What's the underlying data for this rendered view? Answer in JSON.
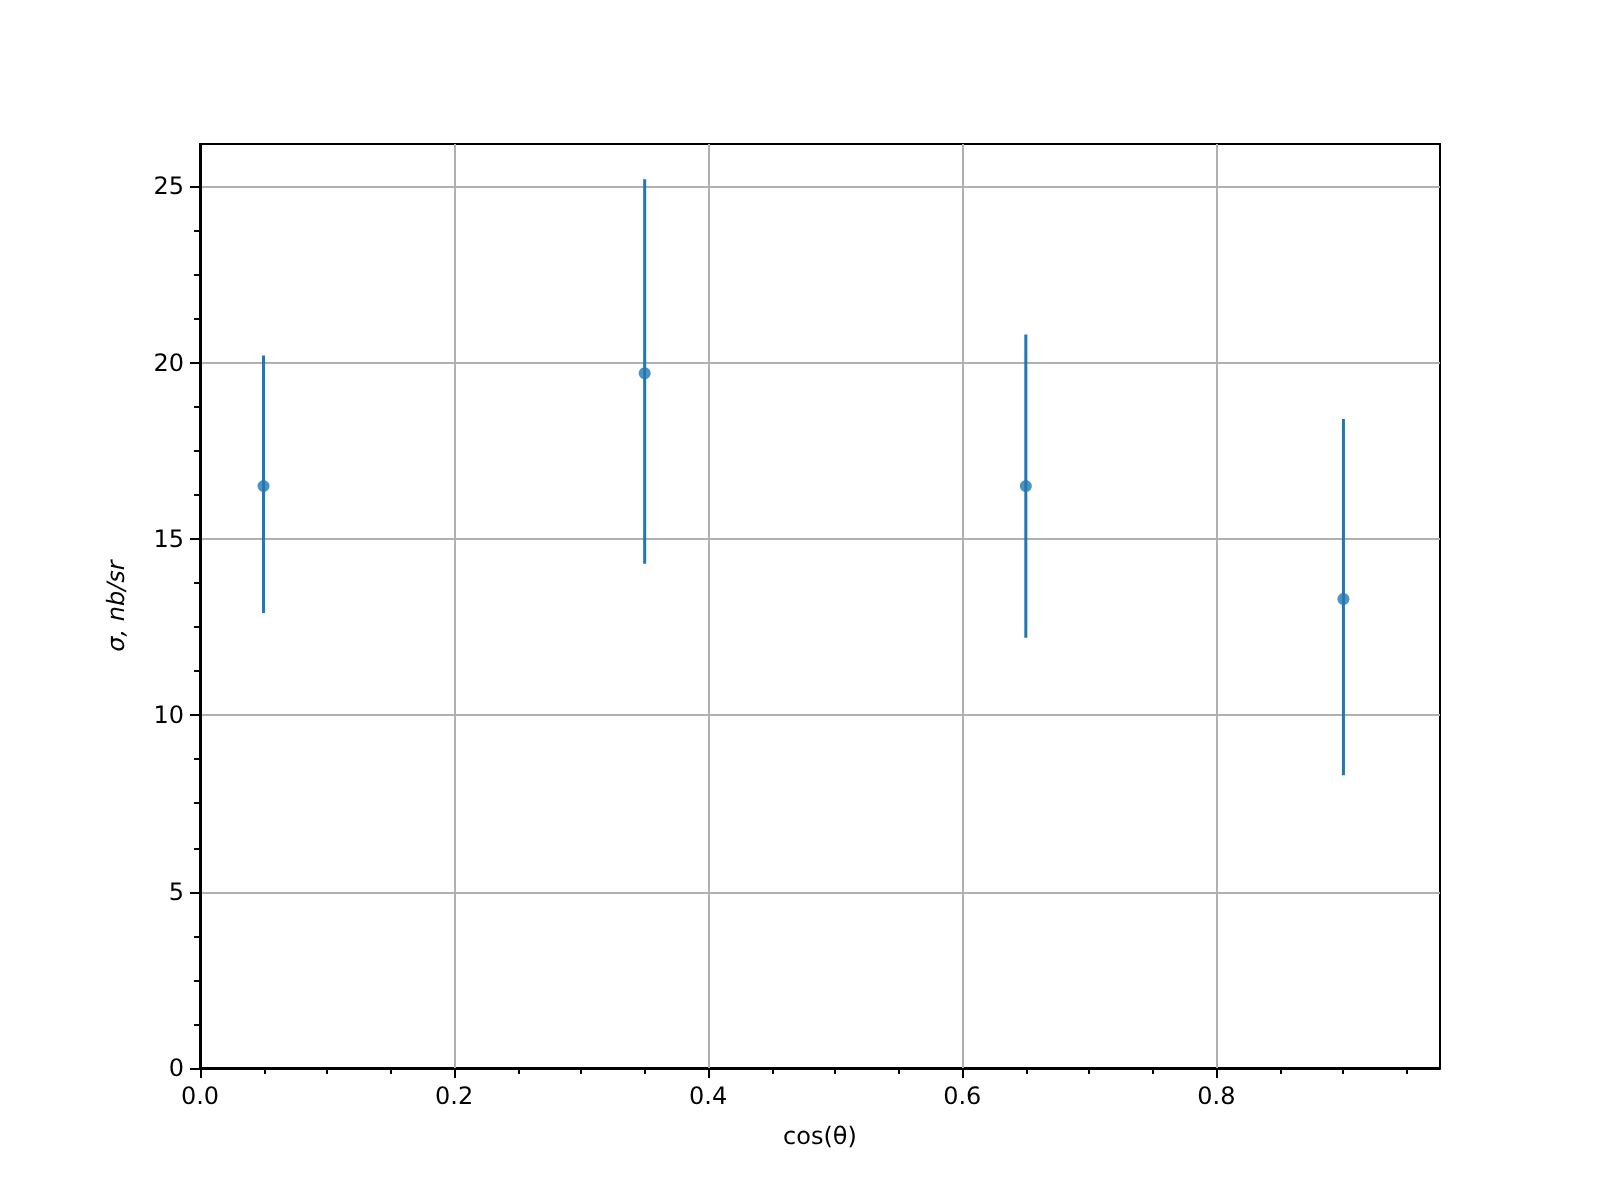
{
  "chart_data": {
    "type": "scatter",
    "xlabel": "cos(θ)",
    "ylabel": "σ, nb/sr",
    "x": [
      0.05,
      0.35,
      0.65,
      0.9
    ],
    "series": [
      {
        "color": "#1f77b4",
        "values": [
          16.5,
          19.7,
          16.5,
          13.3
        ],
        "errors": [
          [
            12.9,
            20.2
          ],
          [
            14.3,
            25.2
          ],
          [
            12.2,
            20.8
          ],
          [
            8.3,
            18.4
          ]
        ]
      }
    ],
    "xlim": [
      0,
      0.976
    ],
    "xticks": [
      {
        "value": 0,
        "label": "0.0"
      },
      {
        "value": 0.2,
        "label": "0.2"
      },
      {
        "value": 0.4,
        "label": "0.4"
      },
      {
        "value": 0.6,
        "label": "0.6"
      },
      {
        "value": 0.8,
        "label": "0.8"
      }
    ],
    "ylim": [
      0,
      26.2
    ],
    "yticks": [
      0,
      5,
      10,
      15,
      20,
      25
    ],
    "grid": true,
    "marker": "circle"
  }
}
